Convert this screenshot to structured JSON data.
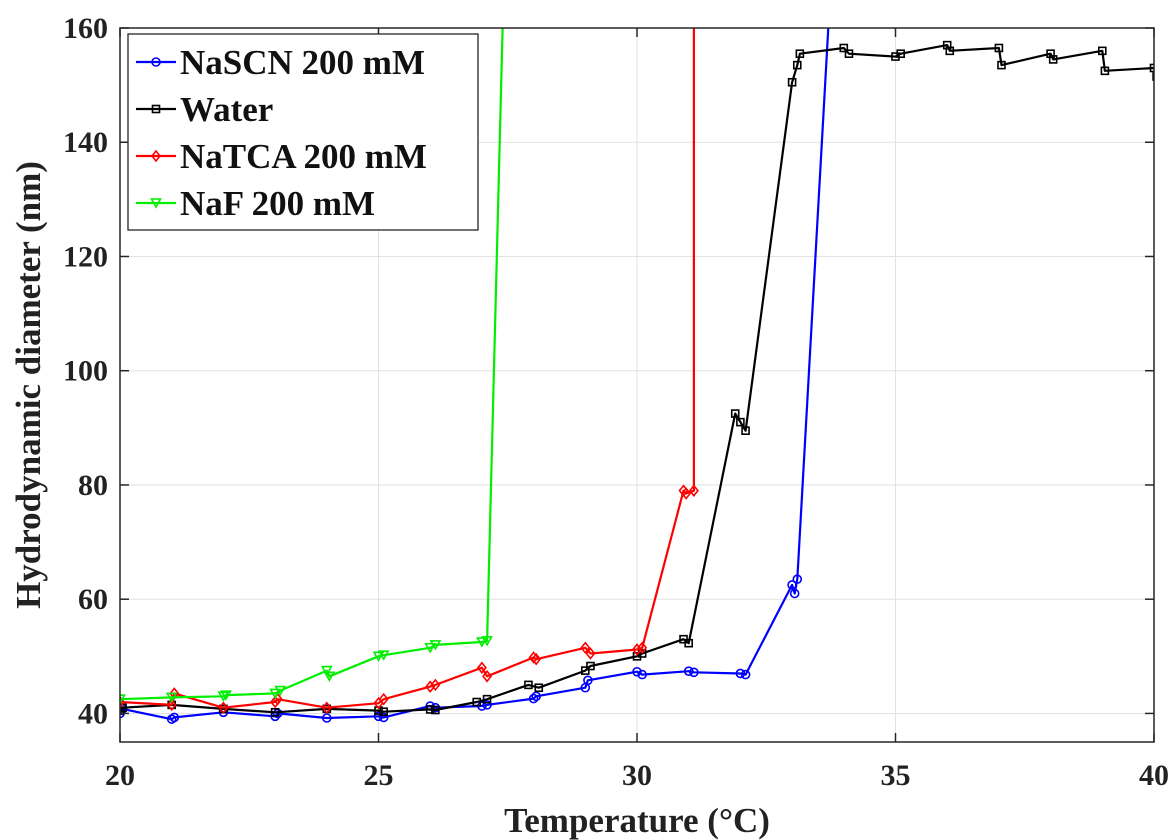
{
  "chart_data": {
    "type": "line",
    "xlabel": "Temperature (°C)",
    "ylabel": "Hydrodynamic diameter (nm)",
    "xlim": [
      20,
      40
    ],
    "ylim": [
      35,
      160
    ],
    "xticks": [
      20,
      25,
      30,
      35,
      40
    ],
    "yticks": [
      40,
      60,
      80,
      100,
      120,
      140,
      160
    ],
    "xtick_labels": [
      "20",
      "25",
      "30",
      "35",
      "40"
    ],
    "ytick_labels": [
      "40",
      "60",
      "80",
      "100",
      "120",
      "140",
      "160"
    ],
    "grid": true,
    "legend_position": "top-left",
    "series": [
      {
        "name": "NaSCN 200 mM",
        "color": "#0000ff",
        "marker": "circle",
        "x": [
          20.0,
          20.05,
          21.0,
          21.05,
          22.0,
          23.0,
          23.05,
          24.0,
          25.0,
          25.1,
          26.0,
          26.1,
          27.0,
          27.1,
          28.0,
          28.05,
          29.0,
          29.05,
          30.0,
          30.1,
          31.0,
          31.1,
          32.0,
          32.1,
          33.0,
          33.05,
          33.1,
          33.7
        ],
        "y": [
          40.0,
          40.8,
          39.0,
          39.3,
          40.2,
          39.5,
          40.0,
          39.2,
          39.5,
          39.3,
          41.3,
          41.0,
          41.3,
          41.5,
          42.6,
          43.0,
          44.5,
          45.8,
          47.3,
          46.8,
          47.4,
          47.2,
          47.0,
          46.8,
          62.5,
          61.0,
          63.5,
          160.0
        ]
      },
      {
        "name": "Water",
        "color": "#000000",
        "marker": "square",
        "x": [
          20.0,
          20.05,
          21.0,
          22.0,
          23.0,
          24.0,
          25.0,
          25.1,
          26.0,
          26.1,
          26.9,
          27.1,
          27.9,
          28.1,
          29.0,
          29.1,
          30.0,
          30.1,
          30.9,
          31.0,
          31.9,
          32.0,
          32.1,
          33.0,
          33.1,
          33.15,
          34.0,
          34.1,
          35.0,
          35.1,
          36.0,
          36.05,
          37.0,
          37.05,
          38.0,
          38.05,
          39.0,
          39.05,
          40.0,
          40.05
        ],
        "y": [
          40.5,
          41.0,
          41.5,
          40.8,
          40.2,
          40.8,
          40.5,
          40.3,
          40.7,
          40.6,
          42.0,
          42.5,
          45.0,
          44.5,
          47.5,
          48.3,
          50.0,
          50.5,
          53.0,
          52.3,
          92.5,
          91.0,
          89.5,
          150.5,
          153.5,
          155.5,
          156.5,
          155.5,
          155.0,
          155.5,
          157.0,
          156.0,
          156.5,
          153.5,
          155.5,
          154.5,
          156.0,
          152.5,
          153.0,
          151.5
        ]
      },
      {
        "name": "NaTCA 200 mM",
        "color": "#ff0000",
        "marker": "diamond",
        "x": [
          20.0,
          21.0,
          21.05,
          22.0,
          23.0,
          23.05,
          24.0,
          25.0,
          25.1,
          26.0,
          26.1,
          27.0,
          27.1,
          28.0,
          28.05,
          29.0,
          29.1,
          30.0,
          30.1,
          30.9,
          30.95,
          31.1,
          31.1
        ],
        "y": [
          42.0,
          41.5,
          43.5,
          41.0,
          42.0,
          42.5,
          41.0,
          41.8,
          42.5,
          44.7,
          45.0,
          48.0,
          46.5,
          49.8,
          49.5,
          51.5,
          50.5,
          51.2,
          51.5,
          79.0,
          78.5,
          79.0,
          160.0
        ]
      },
      {
        "name": "NaF 200 mM",
        "color": "#00ee00",
        "marker": "triangle-down",
        "x": [
          20.0,
          21.0,
          22.0,
          22.05,
          23.0,
          23.1,
          24.0,
          24.05,
          25.0,
          25.1,
          26.0,
          26.1,
          27.0,
          27.1,
          27.4
        ],
        "y": [
          42.5,
          42.8,
          43.0,
          43.2,
          43.5,
          44.0,
          47.5,
          46.5,
          50.0,
          50.2,
          51.5,
          52.0,
          52.5,
          52.7,
          160.0
        ]
      }
    ]
  }
}
